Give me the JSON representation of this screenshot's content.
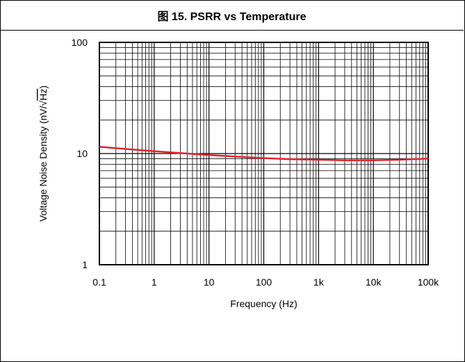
{
  "chart_data": {
    "type": "line",
    "title": "图 15. PSRR vs Temperature",
    "xlabel": "Frequency (Hz)",
    "ylabel": "Voltage Noise Density (nV/√Hz)",
    "x_scale": "log",
    "y_scale": "log",
    "xlim": [
      0.1,
      100000
    ],
    "ylim": [
      1,
      100
    ],
    "x_ticks": [
      {
        "value": 0.1,
        "label": "0.1"
      },
      {
        "value": 1,
        "label": "1"
      },
      {
        "value": 10,
        "label": "10"
      },
      {
        "value": 100,
        "label": "100"
      },
      {
        "value": 1000,
        "label": "1k"
      },
      {
        "value": 10000,
        "label": "10k"
      },
      {
        "value": 100000,
        "label": "100k"
      }
    ],
    "y_ticks": [
      {
        "value": 1,
        "label": "1"
      },
      {
        "value": 10,
        "label": "10"
      },
      {
        "value": 100,
        "label": "100"
      }
    ],
    "grid": true,
    "series": [
      {
        "color": "#e0242b",
        "x": [
          0.1,
          0.3,
          1,
          3,
          10,
          30,
          100,
          300,
          1000,
          3000,
          10000,
          30000,
          100000
        ],
        "y": [
          11.5,
          11.0,
          10.5,
          10.1,
          9.7,
          9.4,
          9.1,
          8.9,
          8.8,
          8.7,
          8.7,
          8.8,
          9.0
        ]
      }
    ]
  }
}
